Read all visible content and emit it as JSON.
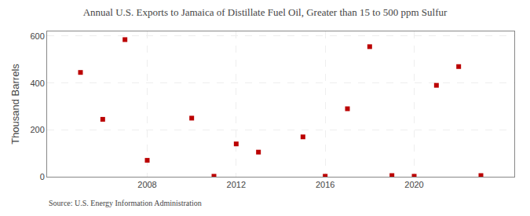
{
  "chart_data": {
    "type": "scatter",
    "title": "Annual U.S. Exports to Jamaica of Distillate Fuel Oil, Greater than 15 to 500 ppm Sulfur",
    "y_label": "Thousand Barrels",
    "annotations": [
      "Source: U.S. Energy Information Administration"
    ],
    "x": [
      2005,
      2006,
      2007,
      2008,
      2010,
      2011,
      2012,
      2013,
      2015,
      2016,
      2017,
      2018,
      2019,
      2020,
      2021,
      2022,
      2023
    ],
    "values": [
      445,
      245,
      585,
      70,
      250,
      2,
      140,
      105,
      170,
      2,
      290,
      555,
      5,
      2,
      390,
      470,
      5
    ],
    "color": "#bb0000",
    "marker": "square",
    "xlim": [
      2003.5,
      2024.5
    ],
    "xticks": [
      2008,
      2012,
      2016,
      2020
    ],
    "ylim": [
      0,
      620
    ],
    "yticks": [
      0,
      200,
      400,
      600
    ],
    "grid": true
  }
}
